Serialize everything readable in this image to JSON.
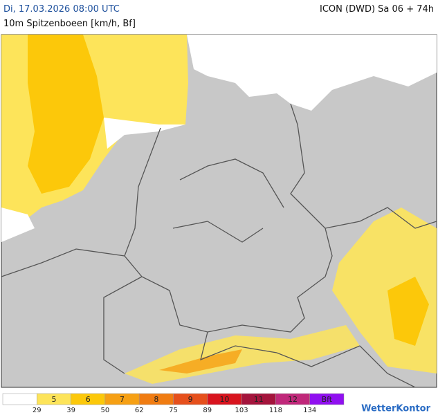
{
  "header": {
    "title": "Di, 17.03.2026 08:00 UTC",
    "subtitle": "10m Spitzenboeen [km/h, Bf]",
    "model": "ICON (DWD) Sa 06 + 74h"
  },
  "legend": {
    "bins": [
      {
        "color": "#ffffff"
      },
      {
        "label": "5",
        "color": "#fde45a"
      },
      {
        "label": "6",
        "color": "#fcc80a"
      },
      {
        "label": "7",
        "color": "#f6a014"
      },
      {
        "label": "8",
        "color": "#f07c12"
      },
      {
        "label": "9",
        "color": "#e6501c"
      },
      {
        "label": "10",
        "color": "#d8141e"
      },
      {
        "label": "11",
        "color": "#a4143c"
      },
      {
        "label": "12",
        "color": "#c0287a"
      },
      {
        "label": "Bft",
        "color": "#9010f0"
      }
    ],
    "thresholds": [
      29,
      39,
      50,
      62,
      75,
      89,
      103,
      118,
      134
    ]
  },
  "brand": "WetterKontor"
}
